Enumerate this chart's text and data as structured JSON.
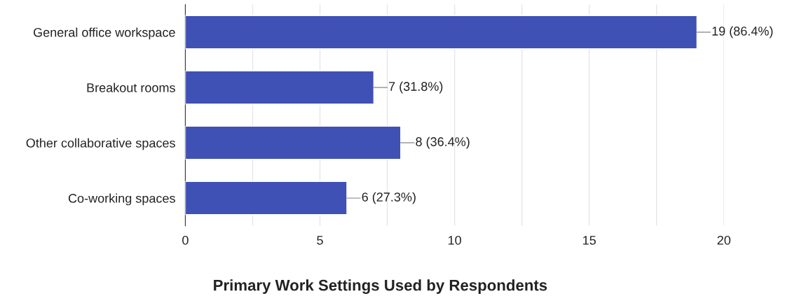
{
  "chart_data": {
    "type": "bar",
    "orientation": "horizontal",
    "title": "Primary Work Settings Used by Respondents",
    "categories": [
      "General office workspace",
      "Breakout rooms",
      "Other collaborative spaces",
      "Co-working spaces"
    ],
    "values": [
      19,
      7,
      8,
      6
    ],
    "color": "#3f51b5",
    "value_labels": [
      "19 (86.4%)",
      "7 (31.8%)",
      "8 (36.4%)",
      "6 (27.3%)"
    ],
    "xlim": [
      0,
      20
    ],
    "xticks": [
      0,
      {
        "value": 2.5,
        "label": null
      },
      5,
      {
        "value": 7.5,
        "label": null
      },
      10,
      {
        "value": 12.5,
        "label": null
      },
      15,
      {
        "value": 17.5,
        "label": null
      },
      20
    ],
    "grid": "x",
    "legend": false
  }
}
